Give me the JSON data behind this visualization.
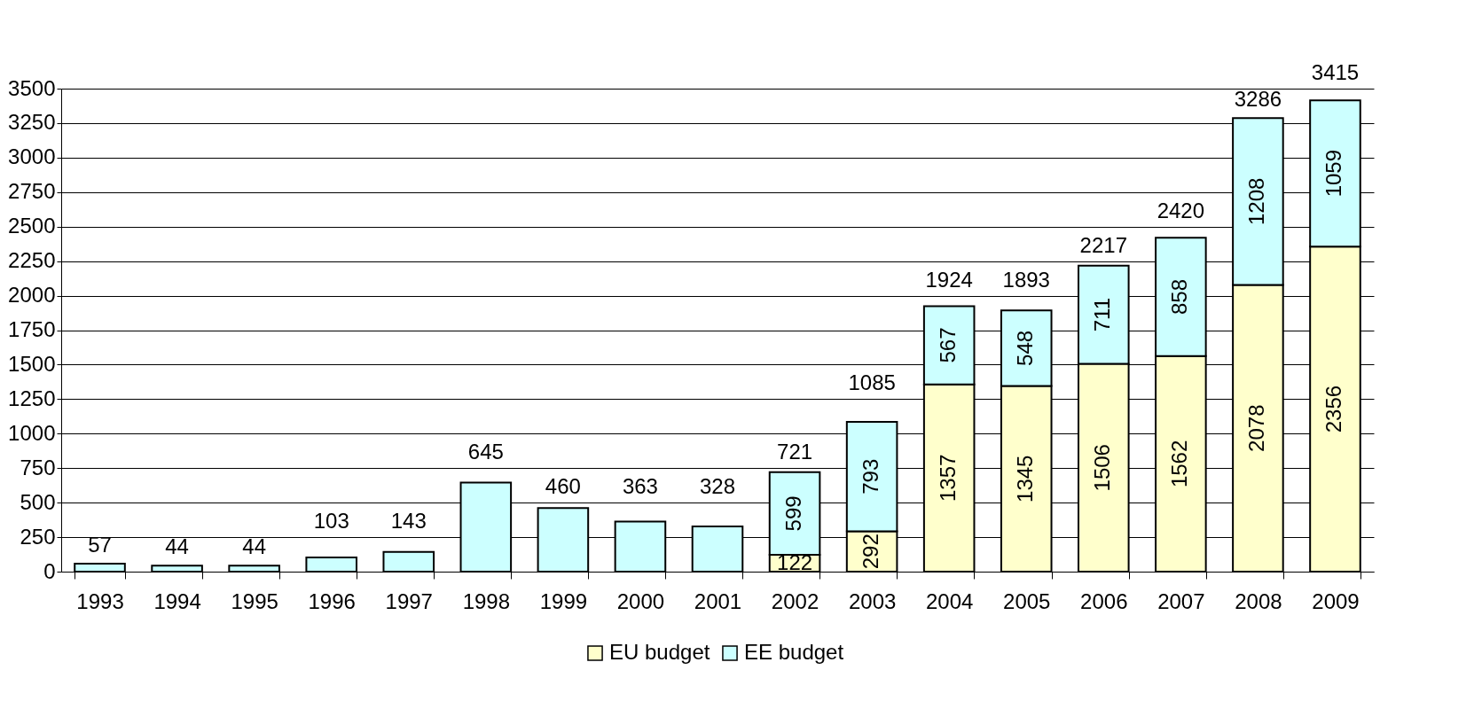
{
  "chart_data": {
    "type": "bar",
    "stacked": true,
    "categories": [
      "1993",
      "1994",
      "1995",
      "1996",
      "1997",
      "1998",
      "1999",
      "2000",
      "2001",
      "2002",
      "2003",
      "2004",
      "2005",
      "2006",
      "2007",
      "2008",
      "2009"
    ],
    "series": [
      {
        "name": "EU budget",
        "color": "#ffffcc",
        "values": [
          null,
          null,
          null,
          null,
          null,
          null,
          null,
          null,
          null,
          122,
          292,
          1357,
          1345,
          1506,
          1562,
          2078,
          2356
        ],
        "value_labels": [
          null,
          null,
          null,
          null,
          null,
          null,
          null,
          null,
          null,
          "122",
          "292",
          "1357",
          "1345",
          "1506",
          "1562",
          "2078",
          "2356"
        ]
      },
      {
        "name": "EE budget",
        "color": "#ccffff",
        "values": [
          57,
          44,
          44,
          103,
          143,
          645,
          460,
          363,
          328,
          599,
          793,
          567,
          548,
          711,
          858,
          1208,
          1059
        ],
        "value_labels": [
          null,
          null,
          null,
          null,
          null,
          null,
          null,
          null,
          null,
          "599",
          "793",
          "567",
          "548",
          "711",
          "858",
          "1208",
          "1059"
        ]
      }
    ],
    "totals": [
      "57",
      "44",
      "44",
      "103",
      "143",
      "645",
      "460",
      "363",
      "328",
      "721",
      "1085",
      "1924",
      "1893",
      "2217",
      "2420",
      "3286",
      "3415"
    ],
    "ylim": [
      0,
      3500
    ],
    "yticks": [
      0,
      250,
      500,
      750,
      1000,
      1250,
      1500,
      1750,
      2000,
      2250,
      2500,
      2750,
      3000,
      3250,
      3500
    ],
    "grid": "y",
    "legend": "bottom"
  }
}
